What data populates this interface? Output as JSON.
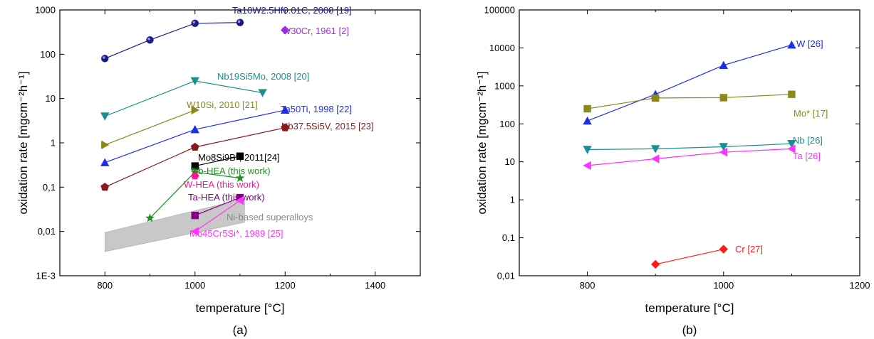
{
  "chart_data": [
    {
      "type": "line",
      "panel_label": "(a)",
      "xlabel": "temperature [°C]",
      "ylabel": "oxidation rate [mgcm⁻²h⁻¹]",
      "xlim": [
        700,
        1500
      ],
      "ylim": [
        0.001,
        1000
      ],
      "yscale": "log",
      "x_ticks": [
        "800",
        "1000",
        "1200",
        "1400"
      ],
      "y_ticks": [
        "1E-3",
        "0,01",
        "0,1",
        "1",
        "10",
        "100",
        "1000"
      ],
      "grid": false,
      "band": {
        "name": "Ni-based superalloys",
        "polygon": [
          [
            800,
            0.0035
          ],
          [
            800,
            0.0095
          ],
          [
            1110,
            0.055
          ],
          [
            1110,
            0.016
          ]
        ],
        "color": "#c8c8c8"
      },
      "series": [
        {
          "name": "Ta10W2.5Hf0.01C, 2000 [19]",
          "color": "#1a1a8c",
          "marker": "circle",
          "x": [
            800,
            900,
            1000,
            1100
          ],
          "y": [
            80,
            210,
            500,
            520
          ]
        },
        {
          "name": "W30Cr, 1961 [2]",
          "color": "#9b30e0",
          "marker": "diamond",
          "x": [
            1200
          ],
          "y": [
            350
          ]
        },
        {
          "name": "Nb19Si5Mo, 2008 [20]",
          "color": "#1a8f8f",
          "marker": "triangle-down",
          "x": [
            800,
            1000,
            1150
          ],
          "y": [
            4,
            25,
            13.5
          ]
        },
        {
          "name": "W10Si, 2010 [21]",
          "color": "#8a8a1a",
          "marker": "triangle-right",
          "x": [
            800,
            1000
          ],
          "y": [
            0.9,
            5.5
          ]
        },
        {
          "name": "Ta50Ti, 1998 [22]",
          "color": "#1e2ee6",
          "marker": "triangle-up",
          "x": [
            800,
            1000,
            1200
          ],
          "y": [
            0.36,
            2.0,
            5.5
          ]
        },
        {
          "name": "Nb37.5Si5V, 2015 [23]",
          "color": "#8b1a1a",
          "marker": "pentagon",
          "x": [
            800,
            1000,
            1200
          ],
          "y": [
            0.1,
            0.8,
            2.2
          ]
        },
        {
          "name": "Mo8Si9B*, 2011[24]",
          "color": "#000000",
          "marker": "square",
          "x": [
            1000,
            1100
          ],
          "y": [
            0.3,
            0.5
          ]
        },
        {
          "name": "Nb-HEA (this work)",
          "color": "#1f8f1f",
          "marker": "star",
          "x": [
            900,
            1000,
            1100
          ],
          "y": [
            0.02,
            0.22,
            0.16
          ]
        },
        {
          "name": "W-HEA (this work)",
          "color": "#ff1493",
          "marker": "hexagon",
          "x": [
            1000
          ],
          "y": [
            0.18
          ]
        },
        {
          "name": "Ta-HEA (this work)",
          "color": "#800080",
          "marker": "square",
          "x": [
            1000,
            1100
          ],
          "y": [
            0.023,
            0.058
          ]
        },
        {
          "name": "Mo45Cr5Si*, 1989 [25]",
          "color": "#ff33ff",
          "marker": "triangle-left",
          "x": [
            1000,
            1100
          ],
          "y": [
            0.01,
            0.05
          ]
        }
      ]
    },
    {
      "type": "line",
      "panel_label": "(b)",
      "xlabel": "temperature [°C]",
      "ylabel": "oxidation rate [mgcm⁻²h⁻¹]",
      "xlim": [
        700,
        1200
      ],
      "ylim": [
        0.01,
        100000
      ],
      "yscale": "log",
      "x_ticks": [
        "800",
        "1000",
        "1200"
      ],
      "y_ticks": [
        "0,01",
        "0,1",
        "1",
        "10",
        "100",
        "1000",
        "10000",
        "100000"
      ],
      "grid": false,
      "series": [
        {
          "name": "W [26]",
          "color": "#1e2ee6",
          "marker": "triangle-up",
          "x": [
            800,
            900,
            1000,
            1100
          ],
          "y": [
            120,
            600,
            3500,
            12000
          ]
        },
        {
          "name": "Mo* [17]",
          "color": "#8a8a1a",
          "marker": "square",
          "x": [
            800,
            900,
            1000,
            1100
          ],
          "y": [
            250,
            480,
            490,
            600
          ]
        },
        {
          "name": "Nb [26]",
          "color": "#1a8f8f",
          "marker": "triangle-down",
          "x": [
            800,
            900,
            1000,
            1100
          ],
          "y": [
            21,
            22,
            25,
            30
          ]
        },
        {
          "name": "Ta [26]",
          "color": "#ff33ff",
          "marker": "triangle-left",
          "x": [
            800,
            900,
            1000,
            1100
          ],
          "y": [
            8,
            12,
            18,
            22
          ]
        },
        {
          "name": "Cr [27]",
          "color": "#ff1a1a",
          "marker": "diamond",
          "x": [
            900,
            1000
          ],
          "y": [
            0.02,
            0.05
          ]
        }
      ]
    }
  ]
}
